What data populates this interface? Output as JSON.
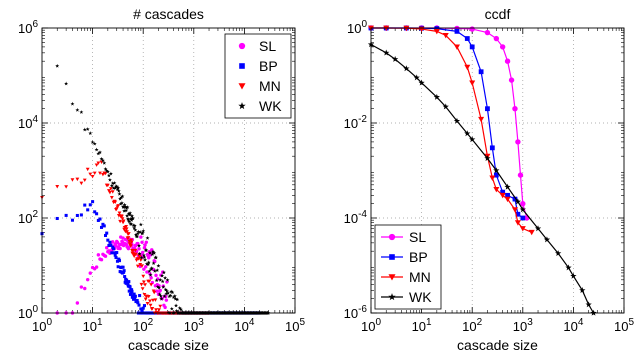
{
  "chart_data": [
    {
      "type": "scatter",
      "title": "# cascades",
      "xlabel": "cascade size",
      "ylabel": "",
      "xscale": "log",
      "yscale": "log",
      "xlim": [
        1,
        100000
      ],
      "ylim": [
        1,
        1000000
      ],
      "grid": true,
      "legend_position": "top-right",
      "x_ticks": [
        {
          "base": "10",
          "exp": "0"
        },
        {
          "base": "10",
          "exp": "1"
        },
        {
          "base": "10",
          "exp": "2"
        },
        {
          "base": "10",
          "exp": "3"
        },
        {
          "base": "10",
          "exp": "4"
        },
        {
          "base": "10",
          "exp": "5"
        }
      ],
      "y_ticks": [
        {
          "base": "10",
          "exp": "0"
        },
        {
          "base": "10",
          "exp": "2"
        },
        {
          "base": "10",
          "exp": "4"
        },
        {
          "base": "10",
          "exp": "6"
        }
      ],
      "series": [
        {
          "name": "SL",
          "color": "#ff00ff",
          "marker": "circle",
          "x_range": [
            2,
            300
          ],
          "peak": [
            40,
            30
          ],
          "tail_x": 300,
          "tail_y": 1
        },
        {
          "name": "BP",
          "color": "#0000ff",
          "marker": "square",
          "x_range": [
            1,
            20000
          ],
          "peak": [
            10,
            200
          ],
          "slope": -2.4,
          "tail_y": 1
        },
        {
          "name": "MN",
          "color": "#ff0000",
          "marker": "triangle-down",
          "x_range": [
            1,
            2000
          ],
          "peak": [
            15,
            1200
          ],
          "slope": -2.8,
          "tail_y": 1
        },
        {
          "name": "WK",
          "color": "#000000",
          "marker": "star",
          "x_range": [
            2,
            30000
          ],
          "start": [
            2,
            150000
          ],
          "slope": -2.2,
          "tail_y": 1
        }
      ]
    },
    {
      "type": "line",
      "title": "ccdf",
      "xlabel": "cascade size",
      "ylabel": "",
      "xscale": "log",
      "yscale": "log",
      "xlim": [
        1,
        100000
      ],
      "ylim": [
        1e-06,
        1
      ],
      "grid": true,
      "legend_position": "bottom-left",
      "x_ticks": [
        {
          "base": "10",
          "exp": "0"
        },
        {
          "base": "10",
          "exp": "1"
        },
        {
          "base": "10",
          "exp": "2"
        },
        {
          "base": "10",
          "exp": "3"
        },
        {
          "base": "10",
          "exp": "4"
        },
        {
          "base": "10",
          "exp": "5"
        }
      ],
      "y_ticks": [
        {
          "base": "10",
          "exp": "-6"
        },
        {
          "base": "10",
          "exp": "-4"
        },
        {
          "base": "10",
          "exp": "-2"
        },
        {
          "base": "10",
          "exp": "0"
        }
      ],
      "series": [
        {
          "name": "SL",
          "color": "#ff00ff",
          "marker": "circle",
          "x": [
            1,
            2,
            5,
            10,
            20,
            50,
            100,
            200,
            300,
            400,
            500,
            600,
            700,
            800,
            900,
            1000,
            1200
          ],
          "y": [
            1,
            1,
            1,
            1,
            1,
            0.98,
            0.95,
            0.8,
            0.6,
            0.4,
            0.2,
            0.08,
            0.02,
            0.004,
            0.0008,
            0.0002,
            0.0001
          ]
        },
        {
          "name": "BP",
          "color": "#0000ff",
          "marker": "square",
          "x": [
            1,
            2,
            5,
            10,
            20,
            50,
            80,
            100,
            150,
            200,
            250,
            300,
            400,
            500,
            700,
            800,
            1000
          ],
          "y": [
            1,
            1,
            1,
            0.99,
            0.97,
            0.85,
            0.6,
            0.4,
            0.12,
            0.02,
            0.003,
            0.0008,
            0.00035,
            0.0003,
            0.00025,
            0.00012,
            0.0001
          ]
        },
        {
          "name": "MN",
          "color": "#ff0000",
          "marker": "triangle-down",
          "x": [
            1,
            2,
            5,
            10,
            20,
            30,
            50,
            80,
            100,
            150,
            200,
            250,
            300,
            400,
            500,
            700,
            800,
            1000,
            1500
          ],
          "y": [
            1,
            1,
            0.99,
            0.95,
            0.85,
            0.7,
            0.4,
            0.15,
            0.07,
            0.012,
            0.002,
            0.0007,
            0.0004,
            0.0003,
            0.00025,
            0.00015,
            8e-05,
            6e-05,
            5e-05
          ]
        },
        {
          "name": "WK",
          "color": "#000000",
          "marker": "star",
          "x": [
            1,
            2,
            3,
            5,
            8,
            10,
            20,
            30,
            50,
            80,
            100,
            200,
            300,
            500,
            800,
            1000,
            2000,
            3000,
            5000,
            8000,
            10000,
            15000,
            20000,
            25000
          ],
          "y": [
            0.45,
            0.3,
            0.22,
            0.14,
            0.09,
            0.07,
            0.035,
            0.022,
            0.011,
            0.006,
            0.0045,
            0.0018,
            0.001,
            0.00045,
            0.00022,
            0.00015,
            6e-05,
            3.5e-05,
            1.8e-05,
            9e-06,
            6e-06,
            3e-06,
            1.5e-06,
            1e-06
          ]
        }
      ]
    }
  ]
}
